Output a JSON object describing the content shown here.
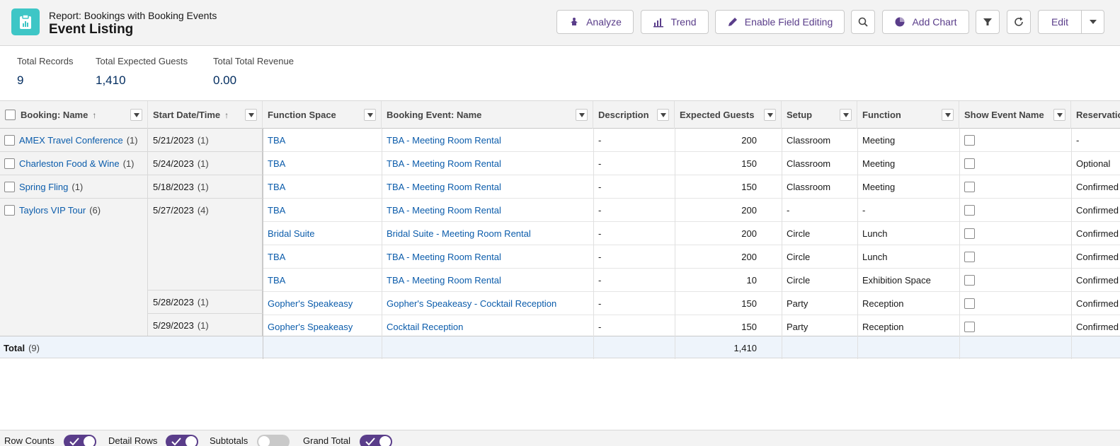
{
  "header": {
    "subtitle": "Report: Bookings with Booking Events",
    "title": "Event Listing",
    "buttons": {
      "analyze": "Analyze",
      "trend": "Trend",
      "enable_field_editing": "Enable Field Editing",
      "add_chart": "Add Chart",
      "edit": "Edit"
    }
  },
  "summary": [
    {
      "label": "Total Records",
      "value": "9"
    },
    {
      "label": "Total Expected Guests",
      "value": "1,410"
    },
    {
      "label": "Total Total Revenue",
      "value": "0.00"
    }
  ],
  "columns": {
    "booking_name": "Booking: Name",
    "start_date": "Start Date/Time",
    "function_space": "Function Space",
    "booking_event_name": "Booking Event: Name",
    "description": "Description",
    "expected_guests": "Expected Guests",
    "setup": "Setup",
    "function": "Function",
    "show_event_name": "Show Event Name",
    "reservation": "Reservatio"
  },
  "groups": [
    {
      "name": "AMEX Travel Conference",
      "count": "(1)"
    },
    {
      "name": "Charleston Food & Wine",
      "count": "(1)"
    },
    {
      "name": "Spring Fling",
      "count": "(1)"
    },
    {
      "name": "Taylors VIP Tour",
      "count": "(6)"
    }
  ],
  "dates": [
    {
      "value": "5/21/2023",
      "count": "(1)"
    },
    {
      "value": "5/24/2023",
      "count": "(1)"
    },
    {
      "value": "5/18/2023",
      "count": "(1)"
    },
    {
      "value": "5/27/2023",
      "count": "(4)"
    },
    {
      "value": "5/28/2023",
      "count": "(1)"
    },
    {
      "value": "5/29/2023",
      "count": "(1)"
    }
  ],
  "rows": [
    {
      "space": "TBA",
      "event": "TBA - Meeting Room Rental",
      "desc": "-",
      "guests": "200",
      "setup": "Classroom",
      "function": "Meeting",
      "reservation": "-"
    },
    {
      "space": "TBA",
      "event": "TBA - Meeting Room Rental",
      "desc": "-",
      "guests": "150",
      "setup": "Classroom",
      "function": "Meeting",
      "reservation": "Optional"
    },
    {
      "space": "TBA",
      "event": "TBA - Meeting Room Rental",
      "desc": "-",
      "guests": "150",
      "setup": "Classroom",
      "function": "Meeting",
      "reservation": "Confirmed"
    },
    {
      "space": "TBA",
      "event": "TBA - Meeting Room Rental",
      "desc": "-",
      "guests": "200",
      "setup": "-",
      "function": "-",
      "reservation": "Confirmed"
    },
    {
      "space": "Bridal Suite",
      "event": "Bridal Suite - Meeting Room Rental",
      "desc": "-",
      "guests": "200",
      "setup": "Circle",
      "function": "Lunch",
      "reservation": "Confirmed"
    },
    {
      "space": "TBA",
      "event": "TBA - Meeting Room Rental",
      "desc": "-",
      "guests": "200",
      "setup": "Circle",
      "function": "Lunch",
      "reservation": "Confirmed"
    },
    {
      "space": "TBA",
      "event": "TBA - Meeting Room Rental",
      "desc": "-",
      "guests": "10",
      "setup": "Circle",
      "function": "Exhibition Space",
      "reservation": "Confirmed"
    },
    {
      "space": "Gopher's Speakeasy",
      "event": "Gopher's Speakeasy - Cocktail Reception",
      "desc": "-",
      "guests": "150",
      "setup": "Party",
      "function": "Reception",
      "reservation": "Confirmed"
    },
    {
      "space": "Gopher's Speakeasy",
      "event": "Cocktail Reception",
      "desc": "-",
      "guests": "150",
      "setup": "Party",
      "function": "Reception",
      "reservation": "Confirmed"
    }
  ],
  "total": {
    "label": "Total",
    "count": "(9)",
    "guests": "1,410"
  },
  "footer": {
    "row_counts": "Row Counts",
    "detail_rows": "Detail Rows",
    "subtotals": "Subtotals",
    "grand_total": "Grand Total"
  },
  "colors": {
    "brand": "#5a3d8a",
    "link": "#0b5cab",
    "icon": "#3ec6c6"
  }
}
